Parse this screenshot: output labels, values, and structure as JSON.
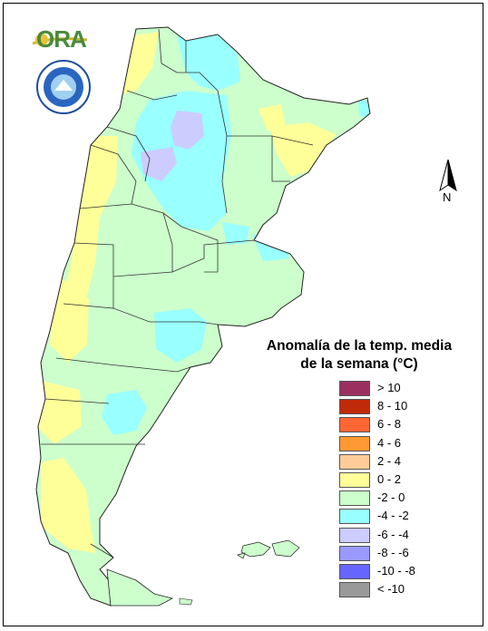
{
  "logo": {
    "text": "ORA"
  },
  "north_arrow": {
    "label": "N"
  },
  "legend": {
    "title_line1": "Anomalía de la temp. media",
    "title_line2": "de la semana (°C)",
    "items": [
      {
        "label": "> 10",
        "color": "#9b2f5f"
      },
      {
        "label": "8 - 10",
        "color": "#c02a0a"
      },
      {
        "label": "6 - 8",
        "color": "#ff6633"
      },
      {
        "label": "4 - 6",
        "color": "#ff9933"
      },
      {
        "label": "2 - 4",
        "color": "#ffcc99"
      },
      {
        "label": "0 - 2",
        "color": "#ffff99"
      },
      {
        "label": "-2 - 0",
        "color": "#ccffcc"
      },
      {
        "label": "-4 - -2",
        "color": "#99ffff"
      },
      {
        "label": "-6 - -4",
        "color": "#ccccff"
      },
      {
        "label": "-8 - -6",
        "color": "#9999ff"
      },
      {
        "label": "-10 - -8",
        "color": "#6666ff"
      },
      {
        "label": "< -10",
        "color": "#999999"
      }
    ]
  }
}
